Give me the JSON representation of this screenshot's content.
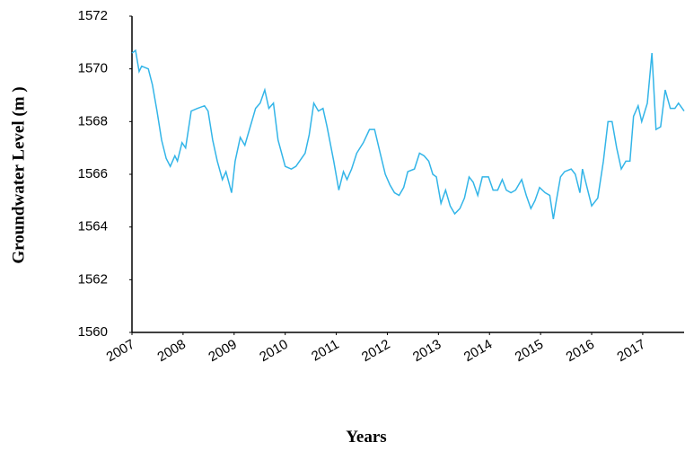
{
  "chart_data": {
    "type": "line",
    "xlabel": "Years",
    "ylabel": "Groundwater Level (m )",
    "x": [
      2007.0,
      2007.07,
      2007.14,
      2007.19,
      2007.32,
      2007.4,
      2007.49,
      2007.58,
      2007.67,
      2007.75,
      2007.84,
      2007.89,
      2007.98,
      2008.05,
      2008.16,
      2008.28,
      2008.42,
      2008.49,
      2008.58,
      2008.67,
      2008.77,
      2008.84,
      2008.95,
      2009.02,
      2009.12,
      2009.21,
      2009.3,
      2009.42,
      2009.51,
      2009.6,
      2009.68,
      2009.77,
      2009.86,
      2010.0,
      2010.12,
      2010.21,
      2010.39,
      2010.47,
      2010.56,
      2010.65,
      2010.74,
      2010.82,
      2010.95,
      2011.05,
      2011.14,
      2011.21,
      2011.3,
      2011.4,
      2011.53,
      2011.65,
      2011.75,
      2011.86,
      2011.96,
      2012.05,
      2012.14,
      2012.23,
      2012.32,
      2012.4,
      2012.53,
      2012.63,
      2012.72,
      2012.81,
      2012.89,
      2012.96,
      2013.05,
      2013.14,
      2013.23,
      2013.32,
      2013.42,
      2013.51,
      2013.6,
      2013.68,
      2013.77,
      2013.86,
      2013.98,
      2014.07,
      2014.16,
      2014.25,
      2014.33,
      2014.42,
      2014.51,
      2014.63,
      2014.72,
      2014.81,
      2014.89,
      2014.98,
      2015.09,
      2015.18,
      2015.25,
      2015.3,
      2015.39,
      2015.47,
      2015.6,
      2015.68,
      2015.77,
      2015.82,
      2015.91,
      2016.0,
      2016.12,
      2016.23,
      2016.32,
      2016.4,
      2016.49,
      2016.58,
      2016.67,
      2016.75,
      2016.82,
      2016.91,
      2016.98,
      2017.09,
      2017.18,
      2017.26,
      2017.35,
      2017.44,
      2017.54,
      2017.63,
      2017.7,
      2017.81
    ],
    "series": [
      {
        "name": "Groundwater Level",
        "color": "#33b5e8",
        "values": [
          1570.6,
          1570.7,
          1569.9,
          1570.1,
          1570.0,
          1569.4,
          1568.4,
          1567.3,
          1566.6,
          1566.3,
          1566.7,
          1566.5,
          1567.2,
          1567.0,
          1568.4,
          1568.5,
          1568.6,
          1568.4,
          1567.3,
          1566.5,
          1565.8,
          1566.1,
          1565.3,
          1566.5,
          1567.4,
          1567.1,
          1567.7,
          1568.5,
          1568.7,
          1569.2,
          1568.5,
          1568.7,
          1567.3,
          1566.3,
          1566.2,
          1566.3,
          1566.8,
          1567.5,
          1568.7,
          1568.4,
          1568.5,
          1567.8,
          1566.5,
          1565.4,
          1566.1,
          1565.8,
          1566.2,
          1566.8,
          1567.2,
          1567.7,
          1567.7,
          1566.8,
          1566.0,
          1565.6,
          1565.3,
          1565.2,
          1565.5,
          1566.1,
          1566.2,
          1566.8,
          1566.7,
          1566.5,
          1566.0,
          1565.9,
          1564.9,
          1565.4,
          1564.8,
          1564.5,
          1564.7,
          1565.1,
          1565.9,
          1565.7,
          1565.2,
          1565.9,
          1565.9,
          1565.4,
          1565.4,
          1565.8,
          1565.4,
          1565.3,
          1565.4,
          1565.8,
          1565.2,
          1564.7,
          1565.0,
          1565.5,
          1565.3,
          1565.2,
          1564.3,
          1564.9,
          1565.9,
          1566.1,
          1566.2,
          1566.0,
          1565.3,
          1566.2,
          1565.5,
          1564.8,
          1565.1,
          1566.5,
          1568.0,
          1568.0,
          1567.0,
          1566.2,
          1566.5,
          1566.5,
          1568.2,
          1568.6,
          1568.0,
          1568.7,
          1570.6,
          1567.7,
          1567.8,
          1569.2,
          1568.5,
          1568.5,
          1568.7,
          1568.4
        ]
      }
    ],
    "xlim": [
      2007,
      2017.81
    ],
    "xticks": [
      2007,
      2008,
      2009,
      2010,
      2011,
      2012,
      2013,
      2014,
      2015,
      2016,
      2017
    ],
    "ylim": [
      1560,
      1572
    ],
    "yticks": [
      1560,
      1562,
      1564,
      1566,
      1568,
      1570,
      1572
    ],
    "grid": false
  }
}
